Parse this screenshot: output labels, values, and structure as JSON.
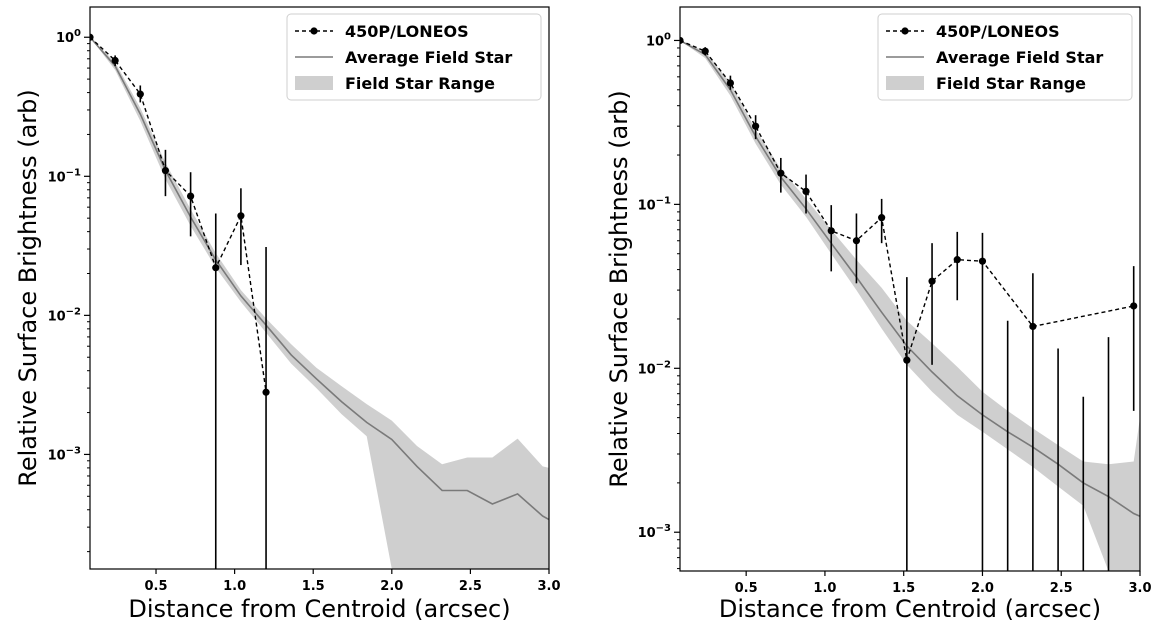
{
  "chart_data": [
    {
      "type": "line",
      "xlabel": "Distance from Centroid (arcsec)",
      "ylabel": "Relative Surface Brightness (arb)",
      "yscale": "log",
      "xlim": [
        0.08,
        3.0
      ],
      "ylim": [
        0.00015,
        1.65
      ],
      "xticks": [
        "0.5",
        "1.0",
        "1.5",
        "2.0",
        "2.5",
        "3.0"
      ],
      "legend_position": "top-right",
      "legend": [
        "450P/LONEOS",
        "Average Field Star",
        "Field Star Range"
      ],
      "series": [
        {
          "name": "450P/LONEOS",
          "style": "dashed-with-markers",
          "color": "#000000",
          "x": [
            0.08,
            0.24,
            0.4,
            0.56,
            0.72,
            0.88,
            1.04,
            1.2
          ],
          "y": [
            1.0,
            0.68,
            0.39,
            0.11,
            0.072,
            0.022,
            0.052,
            0.0028
          ],
          "yerr_low": [
            1.0,
            0.62,
            0.34,
            0.072,
            0.037,
            0.00015,
            0.023,
            0.00015
          ],
          "yerr_high": [
            1.0,
            0.74,
            0.45,
            0.155,
            0.107,
            0.054,
            0.082,
            0.031
          ]
        },
        {
          "name": "Average Field Star",
          "style": "solid",
          "color": "#7a7a7a",
          "x": [
            0.08,
            0.24,
            0.4,
            0.56,
            0.72,
            0.88,
            1.04,
            1.2,
            1.36,
            1.52,
            1.68,
            1.84,
            2.0,
            2.16,
            2.32,
            2.48,
            2.64,
            2.8,
            2.96,
            3.0
          ],
          "y": [
            1.0,
            0.62,
            0.28,
            0.11,
            0.051,
            0.025,
            0.0138,
            0.0085,
            0.0052,
            0.0035,
            0.0024,
            0.0017,
            0.00128,
            0.00082,
            0.00055,
            0.00055,
            0.00044,
            0.00052,
            0.00036,
            0.00034
          ]
        },
        {
          "name": "Field Star Range",
          "style": "band",
          "color": "#cfcfcf",
          "x": [
            0.08,
            0.24,
            0.4,
            0.56,
            0.72,
            0.88,
            1.04,
            1.2,
            1.36,
            1.52,
            1.68,
            1.84,
            2.0,
            2.16,
            2.32,
            2.48,
            2.64,
            2.8,
            2.96,
            3.0
          ],
          "y_low": [
            1.0,
            0.58,
            0.25,
            0.095,
            0.044,
            0.022,
            0.0125,
            0.0075,
            0.0045,
            0.003,
            0.00195,
            0.00135,
            0.00015,
            0.00015,
            0.00015,
            0.00015,
            0.00015,
            0.00015,
            0.00015,
            0.00015
          ],
          "y_high": [
            1.0,
            0.66,
            0.31,
            0.125,
            0.058,
            0.028,
            0.0152,
            0.0095,
            0.0062,
            0.0042,
            0.0031,
            0.0023,
            0.00175,
            0.00115,
            0.00085,
            0.00095,
            0.00095,
            0.0013,
            0.00082,
            0.0008
          ]
        }
      ]
    },
    {
      "type": "line",
      "xlabel": "Distance from Centroid (arcsec)",
      "ylabel": "Relative Surface Brightness (arb)",
      "yscale": "log",
      "xlim": [
        0.08,
        3.0
      ],
      "ylim": [
        0.00058,
        1.6
      ],
      "xticks": [
        "0.5",
        "1.0",
        "1.5",
        "2.0",
        "2.5",
        "3.0"
      ],
      "legend_position": "top-right",
      "legend": [
        "450P/LONEOS",
        "Average Field Star",
        "Field Star Range"
      ],
      "series": [
        {
          "name": "450P/LONEOS",
          "style": "dashed-with-markers",
          "color": "#000000",
          "x": [
            0.08,
            0.24,
            0.4,
            0.56,
            0.72,
            0.88,
            1.04,
            1.2,
            1.36,
            1.52,
            1.68,
            1.84,
            2.0,
            2.16,
            2.32,
            2.48,
            2.64,
            2.8,
            2.96
          ],
          "y": [
            1.0,
            0.86,
            0.55,
            0.3,
            0.155,
            0.12,
            0.069,
            0.06,
            0.083,
            0.0112,
            0.034,
            0.046,
            0.045,
            null,
            0.018,
            null,
            null,
            null,
            0.024
          ],
          "yerr_low": [
            1.0,
            0.81,
            0.5,
            0.25,
            0.118,
            0.088,
            0.039,
            0.033,
            0.058,
            0.00058,
            0.0105,
            0.026,
            0.00058,
            0.00058,
            0.00058,
            0.00058,
            0.00058,
            0.00058,
            0.0055
          ],
          "yerr_high": [
            1.0,
            0.91,
            0.61,
            0.35,
            0.192,
            0.152,
            0.099,
            0.088,
            0.108,
            0.036,
            0.058,
            0.068,
            0.067,
            0.0195,
            0.038,
            0.0132,
            0.0067,
            0.0155,
            0.042
          ]
        },
        {
          "name": "Average Field Star",
          "style": "solid",
          "color": "#7a7a7a",
          "x": [
            0.08,
            0.24,
            0.4,
            0.56,
            0.72,
            0.88,
            1.04,
            1.2,
            1.36,
            1.52,
            1.68,
            1.84,
            2.0,
            2.16,
            2.32,
            2.48,
            2.64,
            2.8,
            2.96,
            3.0
          ],
          "y": [
            1.0,
            0.82,
            0.5,
            0.26,
            0.147,
            0.094,
            0.058,
            0.036,
            0.022,
            0.0137,
            0.0095,
            0.0068,
            0.0052,
            0.0041,
            0.0033,
            0.0026,
            0.002,
            0.00165,
            0.0013,
            0.00125
          ]
        },
        {
          "name": "Field Star Range",
          "style": "band",
          "color": "#cfcfcf",
          "x": [
            0.08,
            0.24,
            0.4,
            0.56,
            0.72,
            0.88,
            1.04,
            1.2,
            1.36,
            1.52,
            1.68,
            1.84,
            2.0,
            2.16,
            2.32,
            2.48,
            2.64,
            2.8,
            2.96,
            3.0
          ],
          "y_low": [
            1.0,
            0.78,
            0.46,
            0.235,
            0.132,
            0.084,
            0.05,
            0.03,
            0.0175,
            0.0105,
            0.0072,
            0.0052,
            0.0041,
            0.0032,
            0.0025,
            0.0019,
            0.00145,
            0.00058,
            0.00058,
            0.00058
          ],
          "y_high": [
            1.0,
            0.86,
            0.55,
            0.285,
            0.165,
            0.108,
            0.07,
            0.046,
            0.031,
            0.0195,
            0.0142,
            0.0102,
            0.0072,
            0.0055,
            0.0043,
            0.0034,
            0.0027,
            0.0026,
            0.0027,
            0.005
          ]
        }
      ]
    }
  ]
}
